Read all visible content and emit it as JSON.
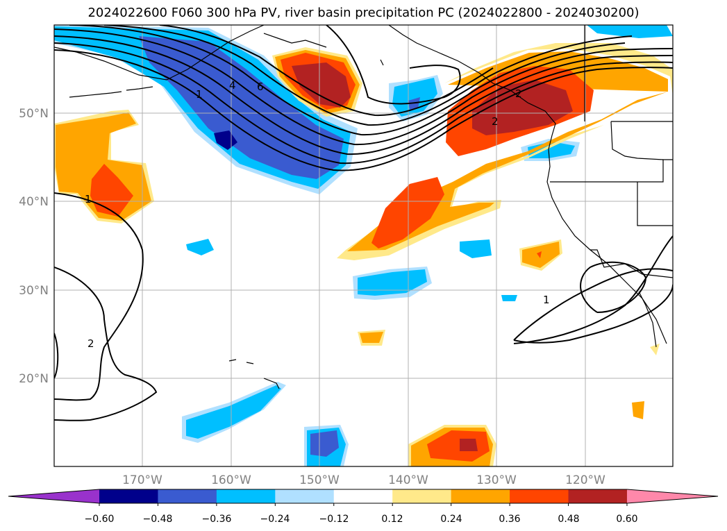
{
  "title": "2024022600 F060 300 hPa PV, river basin precipitation PC (2024022800 - 2024030200)",
  "map": {
    "lon_ticks": [
      "170°W",
      "160°W",
      "150°W",
      "140°W",
      "130°W",
      "120°W"
    ],
    "lat_ticks": [
      "50°N",
      "40°N",
      "30°N",
      "20°N"
    ],
    "contour_labels": [
      "1",
      "4",
      "6",
      "2",
      "2",
      "1",
      "2",
      "1"
    ]
  },
  "colorbar": {
    "ticks": [
      "−0.60",
      "−0.48",
      "−0.36",
      "−0.24",
      "−0.12",
      "0.12",
      "0.24",
      "0.36",
      "0.48",
      "0.60"
    ],
    "colors": [
      "#9932cc",
      "#00008b",
      "#3a5bd0",
      "#00bfff",
      "#b0e0ff",
      "#ffffff",
      "#ffe98a",
      "#ffa500",
      "#ff4500",
      "#b22222",
      "#ff88aa"
    ]
  }
}
